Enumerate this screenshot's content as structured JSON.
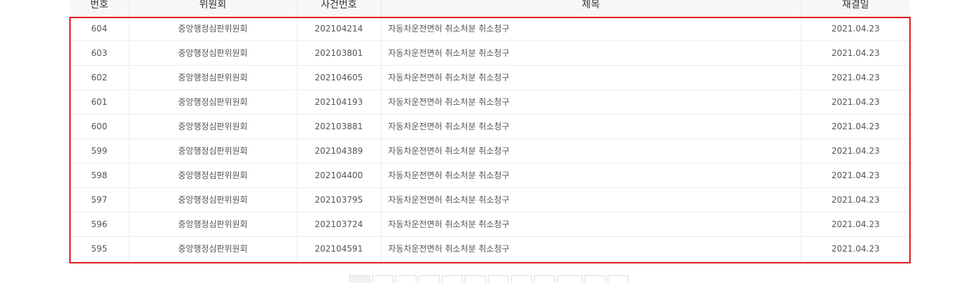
{
  "table": {
    "headers": {
      "no": "번호",
      "committee": "위원회",
      "case_no": "사건번호",
      "title": "제목",
      "date": "재결일"
    },
    "rows": [
      {
        "no": "604",
        "committee": "중앙행정심판위원회",
        "case_no": "202104214",
        "title": "자동차운전면허 취소처분 취소청구",
        "date": "2021.04.23"
      },
      {
        "no": "603",
        "committee": "중앙행정심판위원회",
        "case_no": "202103801",
        "title": "자동차운전면허 취소처분 취소청구",
        "date": "2021.04.23"
      },
      {
        "no": "602",
        "committee": "중앙행정심판위원회",
        "case_no": "202104605",
        "title": "자동차운전면허 취소처분 취소청구",
        "date": "2021.04.23"
      },
      {
        "no": "601",
        "committee": "중앙행정심판위원회",
        "case_no": "202104193",
        "title": "자동차운전면허 취소처분 취소청구",
        "date": "2021.04.23"
      },
      {
        "no": "600",
        "committee": "중앙행정심판위원회",
        "case_no": "202103881",
        "title": "자동차운전면허 취소처분 취소청구",
        "date": "2021.04.23"
      },
      {
        "no": "599",
        "committee": "중앙행정심판위원회",
        "case_no": "202104389",
        "title": "자동차운전면허 취소처분 취소청구",
        "date": "2021.04.23"
      },
      {
        "no": "598",
        "committee": "중앙행정심판위원회",
        "case_no": "202104400",
        "title": "자동차운전면허 취소처분 취소청구",
        "date": "2021.04.23"
      },
      {
        "no": "597",
        "committee": "중앙행정심판위원회",
        "case_no": "202103795",
        "title": "자동차운전면허 취소처분 취소청구",
        "date": "2021.04.23"
      },
      {
        "no": "596",
        "committee": "중앙행정심판위원회",
        "case_no": "202103724",
        "title": "자동차운전면허 취소처분 취소청구",
        "date": "2021.04.23"
      },
      {
        "no": "595",
        "committee": "중앙행정심판위원회",
        "case_no": "202104591",
        "title": "자동차운전면허 취소처분 취소청구",
        "date": "2021.04.23"
      }
    ]
  },
  "highlight": {
    "color": "#e01b1b"
  }
}
